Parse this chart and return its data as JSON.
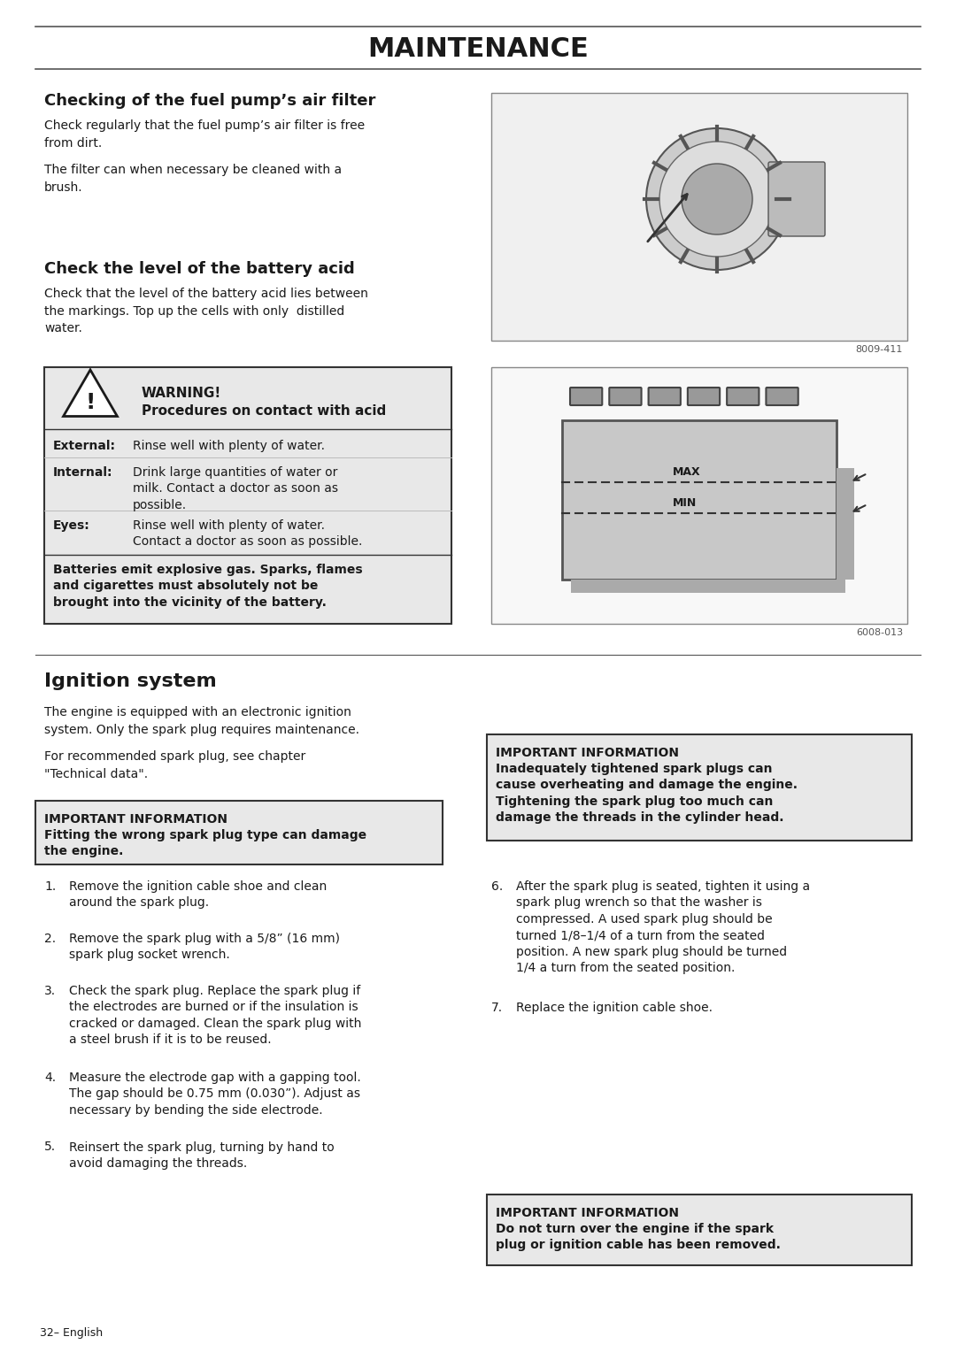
{
  "title": "MAINTENANCE",
  "bg_color": "#ffffff",
  "text_color": "#1a1a1a",
  "section1_heading": "Checking of the fuel pump’s air filter",
  "section1_para1": "Check regularly that the fuel pump’s air filter is free\nfrom dirt.",
  "section1_para2": "The filter can when necessary be cleaned with a\nbrush.",
  "section2_heading": "Check the level of the battery acid",
  "section2_para1": "Check that the level of the battery acid lies between\nthe markings. Top up the cells with only  distilled\nwater.",
  "warning_heading1": "WARNING!",
  "warning_heading2": "Procedures on contact with acid",
  "warning_external_label": "External:",
  "warning_external_text": "Rinse well with plenty of water.",
  "warning_internal_label": "Internal:",
  "warning_internal_text": "Drink large quantities of water or\nmilk. Contact a doctor as soon as\npossible.",
  "warning_eyes_label": "Eyes:",
  "warning_eyes_text": "Rinse well with plenty of water.\nContact a doctor as soon as possible.",
  "warning_footer": "Batteries emit explosive gas. Sparks, flames\nand cigarettes must absolutely not be\nbrought into the vicinity of the battery.",
  "img1_caption": "8009-411",
  "img2_caption": "6008-013",
  "section3_heading": "Ignition system",
  "section3_para1": "The engine is equipped with an electronic ignition\nsystem. Only the spark plug requires maintenance.",
  "section3_para2": "For recommended spark plug, see chapter\n\"Technical data\".",
  "important1_heading": "IMPORTANT INFORMATION",
  "important1_text": "Fitting the wrong spark plug type can damage\nthe engine.",
  "important2_heading": "IMPORTANT INFORMATION",
  "important2_text": "Inadequately tightened spark plugs can\ncause overheating and damage the engine.\nTightening the spark plug too much can\ndamage the threads in the cylinder head.",
  "important3_heading": "IMPORTANT INFORMATION",
  "important3_text": "Do not turn over the engine if the spark\nplug or ignition cable has been removed.",
  "steps": [
    "Remove the ignition cable shoe and clean\naround the spark plug.",
    "Remove the spark plug with a 5/8” (16 mm)\nspark plug socket wrench.",
    "Check the spark plug. Replace the spark plug if\nthe electrodes are burned or if the insulation is\ncracked or damaged. Clean the spark plug with\na steel brush if it is to be reused.",
    "Measure the electrode gap with a gapping tool.\nThe gap should be 0.75 mm (0.030”). Adjust as\nnecessary by bending the side electrode.",
    "Reinsert the spark plug, turning by hand to\navoid damaging the threads.",
    "After the spark plug is seated, tighten it using a\nspark plug wrench so that the washer is\ncompressed. A used spark plug should be\nturned 1/8–1/4 of a turn from the seated\nposition. A new spark plug should be turned\n1/4 a turn from the seated position.",
    "Replace the ignition cable shoe."
  ],
  "footer_text": "32– English"
}
